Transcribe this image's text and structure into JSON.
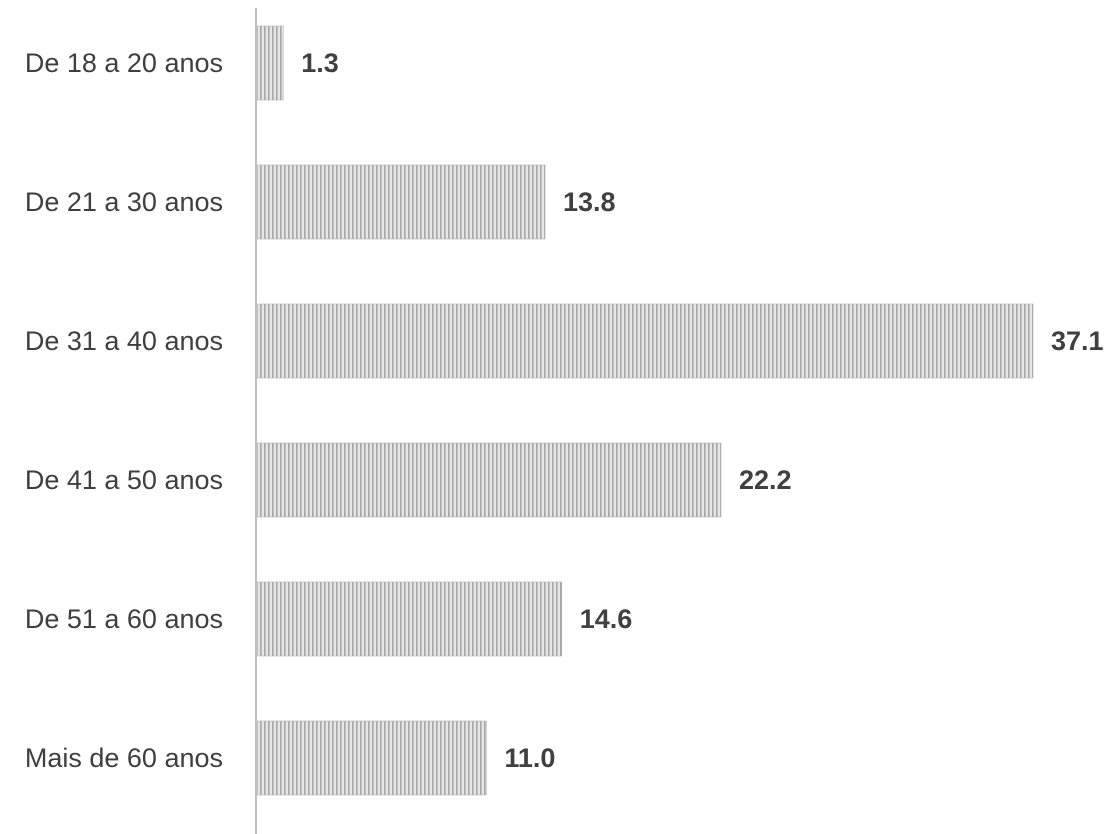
{
  "chart_data": {
    "type": "bar",
    "orientation": "horizontal",
    "categories": [
      "De 18 a 20 anos",
      "De 21 a 30 anos",
      "De 31 a 40 anos",
      "De 41 a 50 anos",
      "De 51 a 60 anos",
      "Mais de 60 anos"
    ],
    "values": [
      1.3,
      13.8,
      37.1,
      22.2,
      14.6,
      11.0
    ],
    "value_labels": [
      "1.3",
      "13.8",
      "37.1",
      "22.2",
      "14.6",
      "11.0"
    ],
    "title": "",
    "xlabel": "",
    "ylabel": "",
    "xlim": [
      0,
      37.1
    ],
    "grid": false,
    "legend": "none",
    "colors": {
      "bar_fill": "#e6e6e6",
      "bar_stripe": "#a6a6a6",
      "axis": "#bfbfbf",
      "category_text": "#3f3f3f",
      "value_text": "#404040"
    }
  }
}
